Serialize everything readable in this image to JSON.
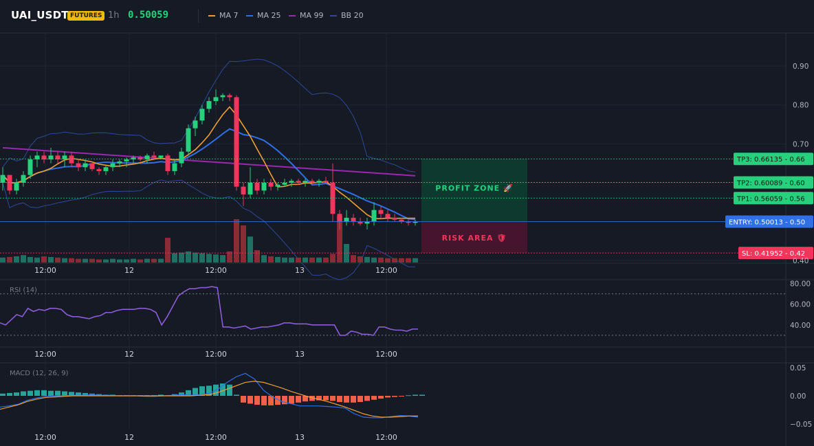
{
  "header": {
    "symbol": "UAI_USDT",
    "badge": "FUTURES",
    "interval": "1h",
    "price": "0.50059",
    "legend": [
      {
        "label": "MA 7",
        "color": "#f0a030"
      },
      {
        "label": "MA 25",
        "color": "#2f6fe8"
      },
      {
        "label": "MA 99",
        "color": "#9c27b0"
      },
      {
        "label": "BB 20",
        "color": "#2a4a9a"
      }
    ]
  },
  "colors": {
    "up": "#26d07c",
    "down": "#f0365a",
    "vol_up": "#1f6f63",
    "vol_down": "#8a2c36",
    "tp": "#26d07c",
    "sl": "#f0365a",
    "entry": "#2f6fe8"
  },
  "time_labels": [
    "12:00",
    "12",
    "12:00",
    "13",
    "12:00"
  ],
  "zones": {
    "profit": "PROFIT ZONE 🚀",
    "risk": "RISK AREA 🛡"
  },
  "chart_data": [
    {
      "panel": "price",
      "type": "candlestick",
      "ylim": [
        0.395,
        0.985
      ],
      "yticks": [
        "0.90",
        "0.80",
        "0.70",
        "0.40"
      ],
      "candles": [
        [
          0.6,
          0.64,
          0.58,
          0.62
        ],
        [
          0.62,
          0.62,
          0.57,
          0.58
        ],
        [
          0.58,
          0.61,
          0.57,
          0.6
        ],
        [
          0.6,
          0.63,
          0.59,
          0.62
        ],
        [
          0.62,
          0.67,
          0.61,
          0.66
        ],
        [
          0.66,
          0.68,
          0.64,
          0.67
        ],
        [
          0.67,
          0.68,
          0.65,
          0.66
        ],
        [
          0.66,
          0.69,
          0.65,
          0.67
        ],
        [
          0.67,
          0.68,
          0.65,
          0.66
        ],
        [
          0.66,
          0.68,
          0.64,
          0.67
        ],
        [
          0.67,
          0.68,
          0.64,
          0.65
        ],
        [
          0.65,
          0.66,
          0.63,
          0.64
        ],
        [
          0.64,
          0.66,
          0.63,
          0.65
        ],
        [
          0.65,
          0.65,
          0.63,
          0.635
        ],
        [
          0.635,
          0.64,
          0.62,
          0.63
        ],
        [
          0.63,
          0.645,
          0.62,
          0.64
        ],
        [
          0.64,
          0.66,
          0.63,
          0.65
        ],
        [
          0.65,
          0.66,
          0.64,
          0.655
        ],
        [
          0.655,
          0.665,
          0.64,
          0.66
        ],
        [
          0.66,
          0.67,
          0.65,
          0.665
        ],
        [
          0.665,
          0.67,
          0.655,
          0.66
        ],
        [
          0.66,
          0.675,
          0.65,
          0.67
        ],
        [
          0.67,
          0.68,
          0.66,
          0.665
        ],
        [
          0.665,
          0.67,
          0.66,
          0.67
        ],
        [
          0.67,
          0.675,
          0.62,
          0.63
        ],
        [
          0.63,
          0.66,
          0.62,
          0.65
        ],
        [
          0.65,
          0.69,
          0.64,
          0.68
        ],
        [
          0.68,
          0.75,
          0.67,
          0.74
        ],
        [
          0.74,
          0.77,
          0.72,
          0.76
        ],
        [
          0.76,
          0.8,
          0.75,
          0.79
        ],
        [
          0.79,
          0.82,
          0.78,
          0.81
        ],
        [
          0.81,
          0.84,
          0.8,
          0.82
        ],
        [
          0.82,
          0.83,
          0.81,
          0.825
        ],
        [
          0.825,
          0.83,
          0.81,
          0.82
        ],
        [
          0.82,
          0.825,
          0.58,
          0.59
        ],
        [
          0.59,
          0.6,
          0.54,
          0.57
        ],
        [
          0.57,
          0.64,
          0.56,
          0.6
        ],
        [
          0.6,
          0.61,
          0.57,
          0.58
        ],
        [
          0.58,
          0.61,
          0.57,
          0.6
        ],
        [
          0.6,
          0.61,
          0.58,
          0.59
        ],
        [
          0.59,
          0.6,
          0.58,
          0.595
        ],
        [
          0.595,
          0.61,
          0.59,
          0.6
        ],
        [
          0.6,
          0.61,
          0.59,
          0.605
        ],
        [
          0.605,
          0.61,
          0.595,
          0.6
        ],
        [
          0.6,
          0.61,
          0.59,
          0.605
        ],
        [
          0.605,
          0.61,
          0.595,
          0.6
        ],
        [
          0.6,
          0.61,
          0.59,
          0.605
        ],
        [
          0.605,
          0.615,
          0.6,
          0.6
        ],
        [
          0.6,
          0.65,
          0.5,
          0.52
        ],
        [
          0.52,
          0.53,
          0.48,
          0.5
        ],
        [
          0.5,
          0.53,
          0.49,
          0.51
        ],
        [
          0.51,
          0.52,
          0.49,
          0.5
        ],
        [
          0.5,
          0.51,
          0.49,
          0.495
        ],
        [
          0.495,
          0.51,
          0.48,
          0.5
        ],
        [
          0.5,
          0.55,
          0.49,
          0.53
        ],
        [
          0.53,
          0.54,
          0.51,
          0.52
        ],
        [
          0.52,
          0.53,
          0.5,
          0.51
        ],
        [
          0.51,
          0.52,
          0.5,
          0.505
        ],
        [
          0.505,
          0.51,
          0.495,
          0.5
        ],
        [
          0.5,
          0.505,
          0.49,
          0.497
        ],
        [
          0.497,
          0.505,
          0.49,
          0.5
        ]
      ],
      "volume": [
        8,
        9,
        10,
        12,
        9,
        8,
        10,
        9,
        8,
        7,
        7,
        6,
        6,
        6,
        5,
        5,
        6,
        5,
        5,
        6,
        5,
        6,
        6,
        6,
        40,
        15,
        16,
        18,
        16,
        15,
        14,
        13,
        12,
        18,
        70,
        60,
        42,
        20,
        12,
        10,
        9,
        8,
        8,
        8,
        8,
        8,
        8,
        8,
        14,
        75,
        30,
        12,
        10,
        9,
        8,
        8,
        7,
        7,
        7,
        7,
        7
      ],
      "levels": [
        {
          "label": "TP3: 0.66135 - 0.66",
          "value": 0.66135,
          "kind": "tp"
        },
        {
          "label": "TP2: 0.60089 - 0.60",
          "value": 0.60089,
          "kind": "tp"
        },
        {
          "label": "TP1: 0.56059 - 0.56",
          "value": 0.56059,
          "kind": "tp"
        },
        {
          "label": "ENTRY: 0.50013 - 0.50",
          "value": 0.50013,
          "kind": "entry"
        },
        {
          "label": "SL: 0.41952 - 0.42",
          "value": 0.41952,
          "kind": "sl"
        }
      ]
    },
    {
      "panel": "rsi",
      "type": "line",
      "title": "RSI (14)",
      "ylim": [
        20,
        85
      ],
      "yticks": [
        "80.00",
        "60.00",
        "40.00"
      ],
      "guides": [
        70,
        30
      ],
      "values": [
        42,
        40,
        45,
        50,
        48,
        56,
        53,
        55,
        54,
        56,
        56,
        55,
        50,
        48,
        48,
        47,
        46,
        48,
        49,
        52,
        52,
        54,
        55,
        55,
        55,
        56,
        56,
        55,
        52,
        40,
        48,
        58,
        68,
        72,
        75,
        75,
        76,
        76,
        77,
        76,
        38,
        38,
        37,
        38,
        39,
        36,
        37,
        38,
        38,
        39,
        40,
        42,
        42,
        41,
        41,
        41,
        40,
        40,
        40,
        40,
        40,
        30,
        30,
        34,
        33,
        31,
        31,
        30,
        38,
        38,
        36,
        35,
        35,
        34,
        36,
        36
      ]
    },
    {
      "panel": "macd",
      "type": "histogram+line",
      "title": "MACD (12, 26, 9)",
      "ylim": [
        -0.06,
        0.06
      ],
      "yticks": [
        "0.05",
        "0.00",
        "−0.05"
      ],
      "histogram": [
        0.004,
        0.005,
        0.006,
        0.008,
        0.009,
        0.01,
        0.01,
        0.009,
        0.009,
        0.008,
        0.007,
        0.006,
        0.005,
        0.004,
        0.003,
        0.002,
        0.002,
        0.001,
        0.001,
        0.001,
        0.001,
        0.001,
        0.001,
        0.002,
        0.001,
        0.003,
        0.006,
        0.01,
        0.014,
        0.017,
        0.018,
        0.02,
        0.022,
        0.02,
        0.002,
        -0.012,
        -0.014,
        -0.016,
        -0.017,
        -0.017,
        -0.016,
        -0.015,
        -0.014,
        -0.012,
        -0.01,
        -0.009,
        -0.008,
        -0.008,
        -0.009,
        -0.011,
        -0.012,
        -0.012,
        -0.011,
        -0.009,
        -0.007,
        -0.005,
        -0.003,
        -0.002,
        -0.001,
        0.001,
        0.002,
        0.002
      ],
      "macd": [
        -0.02,
        -0.018,
        -0.015,
        -0.008,
        -0.004,
        -0.001,
        0.0,
        0.0,
        0.001,
        0.001,
        0.002,
        0.001,
        0.001,
        0.0,
        0.0,
        0.0,
        -0.001,
        -0.001,
        0.0,
        0.001,
        0.002,
        0.001,
        0.002,
        0.004,
        0.012,
        0.024,
        0.034,
        0.04,
        0.03,
        0.01,
        -0.002,
        -0.01,
        -0.014,
        -0.018,
        -0.018,
        -0.018,
        -0.019,
        -0.02,
        -0.022,
        -0.032,
        -0.038,
        -0.039,
        -0.039,
        -0.037,
        -0.035,
        -0.036,
        -0.038
      ],
      "signal": [
        -0.024,
        -0.02,
        -0.016,
        -0.01,
        -0.006,
        -0.003,
        -0.002,
        -0.001,
        0.0,
        0.0,
        0.0,
        0.0,
        0.0,
        0.0,
        0.0,
        0.0,
        0.0,
        0.0,
        0.0,
        0.0,
        0.0,
        0.0,
        0.001,
        0.002,
        0.006,
        0.012,
        0.018,
        0.024,
        0.026,
        0.024,
        0.019,
        0.014,
        0.008,
        0.003,
        -0.002,
        -0.006,
        -0.01,
        -0.015,
        -0.02,
        -0.026,
        -0.032,
        -0.036,
        -0.038,
        -0.038,
        -0.037,
        -0.036,
        -0.036
      ]
    }
  ]
}
